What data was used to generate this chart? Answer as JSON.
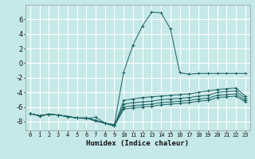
{
  "xlabel": "Humidex (Indice chaleur)",
  "bg_color": "#c5e8e8",
  "grid_color": "#ffffff",
  "line_color": "#1a6060",
  "xlim": [
    -0.5,
    23.5
  ],
  "ylim": [
    -9.2,
    8.0
  ],
  "xticks": [
    0,
    1,
    2,
    3,
    4,
    5,
    6,
    7,
    8,
    9,
    10,
    11,
    12,
    13,
    14,
    15,
    16,
    17,
    18,
    19,
    20,
    21,
    22,
    23
  ],
  "yticks": [
    -8,
    -6,
    -4,
    -2,
    0,
    2,
    4,
    6
  ],
  "series": [
    {
      "x": [
        0,
        1,
        2,
        3,
        4,
        5,
        6,
        7,
        8,
        9,
        10,
        11,
        12,
        13,
        14,
        15,
        16,
        17,
        18,
        19,
        20,
        21,
        22,
        23
      ],
      "y": [
        -6.9,
        -7.2,
        -7.0,
        -7.1,
        -7.3,
        -7.5,
        -7.6,
        -7.4,
        -8.2,
        -8.4,
        -1.2,
        2.5,
        5.1,
        7.0,
        6.9,
        4.7,
        -1.3,
        -1.5,
        -1.4,
        -1.4,
        -1.4,
        -1.4,
        -1.4,
        -1.4
      ]
    },
    {
      "x": [
        0,
        1,
        2,
        3,
        4,
        5,
        6,
        7,
        8,
        9,
        10,
        11,
        12,
        13,
        14,
        15,
        16,
        17,
        18,
        19,
        20,
        21,
        22,
        23
      ],
      "y": [
        -6.9,
        -7.2,
        -7.0,
        -7.1,
        -7.3,
        -7.5,
        -7.5,
        -7.8,
        -8.2,
        -8.6,
        -5.1,
        -4.9,
        -4.7,
        -4.6,
        -4.5,
        -4.4,
        -4.3,
        -4.2,
        -4.0,
        -3.8,
        -3.6,
        -3.5,
        -3.4,
        -4.5
      ]
    },
    {
      "x": [
        0,
        1,
        2,
        3,
        4,
        5,
        6,
        7,
        8,
        9,
        10,
        11,
        12,
        13,
        14,
        15,
        16,
        17,
        18,
        19,
        20,
        21,
        22,
        23
      ],
      "y": [
        -6.9,
        -7.2,
        -7.0,
        -7.1,
        -7.3,
        -7.5,
        -7.5,
        -7.9,
        -8.2,
        -8.6,
        -5.6,
        -5.4,
        -5.3,
        -5.2,
        -5.0,
        -4.9,
        -4.8,
        -4.7,
        -4.5,
        -4.4,
        -4.0,
        -3.9,
        -3.8,
        -4.8
      ]
    },
    {
      "x": [
        0,
        1,
        2,
        3,
        4,
        5,
        6,
        7,
        8,
        9,
        10,
        11,
        12,
        13,
        14,
        15,
        16,
        17,
        18,
        19,
        20,
        21,
        22,
        23
      ],
      "y": [
        -6.9,
        -7.2,
        -7.0,
        -7.1,
        -7.3,
        -7.5,
        -7.5,
        -7.9,
        -8.2,
        -8.6,
        -6.0,
        -5.8,
        -5.7,
        -5.6,
        -5.4,
        -5.3,
        -5.2,
        -5.1,
        -4.9,
        -4.8,
        -4.4,
        -4.3,
        -4.2,
        -5.1
      ]
    },
    {
      "x": [
        0,
        1,
        2,
        3,
        4,
        5,
        6,
        7,
        8,
        9,
        10,
        11,
        12,
        13,
        14,
        15,
        16,
        17,
        18,
        19,
        20,
        21,
        22,
        23
      ],
      "y": [
        -6.9,
        -7.2,
        -7.0,
        -7.1,
        -7.3,
        -7.5,
        -7.5,
        -7.9,
        -8.2,
        -8.6,
        -6.3,
        -6.1,
        -6.0,
        -5.9,
        -5.7,
        -5.6,
        -5.5,
        -5.4,
        -5.2,
        -5.1,
        -4.7,
        -4.6,
        -4.5,
        -5.3
      ]
    }
  ]
}
